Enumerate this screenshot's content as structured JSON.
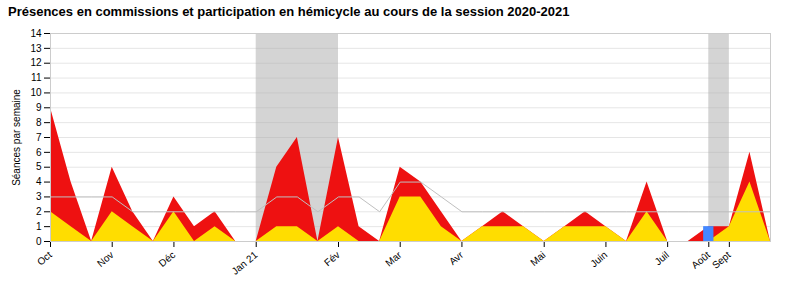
{
  "chart_data": {
    "type": "area",
    "title": "Présences en commissions et participation en hémicycle au cours de la session 2020-2021",
    "ylabel": "Séances par semaine",
    "x": [
      0,
      1,
      2,
      3,
      4,
      5,
      6,
      7,
      8,
      9,
      10,
      11,
      12,
      13,
      14,
      15,
      16,
      17,
      18,
      19,
      20,
      21,
      22,
      23,
      24,
      25,
      26,
      27,
      28,
      29,
      30,
      31,
      32,
      33,
      34,
      35
    ],
    "xlim": [
      0,
      35
    ],
    "xticks": [
      {
        "value": 0,
        "label": "Oct"
      },
      {
        "value": 3,
        "label": "Nov"
      },
      {
        "value": 6,
        "label": "Déc"
      },
      {
        "value": 10,
        "label": "Jan 21"
      },
      {
        "value": 14,
        "label": "Fév"
      },
      {
        "value": 17,
        "label": "Mar"
      },
      {
        "value": 20,
        "label": "Avr"
      },
      {
        "value": 24,
        "label": "Mai"
      },
      {
        "value": 27,
        "label": "Juin"
      },
      {
        "value": 30,
        "label": "Juil"
      },
      {
        "value": 32,
        "label": "Août"
      },
      {
        "value": 33,
        "label": "Sept"
      }
    ],
    "ylim": [
      0,
      14
    ],
    "yticks": [
      0,
      1,
      2,
      3,
      4,
      5,
      6,
      7,
      8,
      9,
      10,
      11,
      12,
      13,
      14
    ],
    "grid": true,
    "series": [
      {
        "type": "area",
        "color": "#ee1111",
        "values": [
          9,
          4,
          0,
          5,
          2,
          0,
          3,
          1,
          2,
          0,
          0,
          5,
          7,
          0,
          7,
          1,
          0,
          5,
          4,
          2,
          0,
          1,
          2,
          1,
          0,
          1,
          2,
          1,
          0,
          4,
          0,
          0,
          1,
          1,
          6,
          0
        ]
      },
      {
        "type": "area",
        "color": "#ffdd00",
        "values": [
          2,
          1,
          0,
          2,
          1,
          0,
          2,
          0,
          1,
          0,
          0,
          1,
          1,
          0,
          1,
          0,
          0,
          3,
          3,
          1,
          0,
          1,
          1,
          1,
          0,
          1,
          1,
          1,
          0,
          2,
          0,
          0,
          0,
          1,
          4,
          0
        ]
      },
      {
        "type": "bar",
        "color": "#4488ff",
        "values": [
          null,
          null,
          null,
          null,
          null,
          null,
          null,
          null,
          null,
          null,
          null,
          null,
          null,
          null,
          null,
          null,
          null,
          null,
          null,
          null,
          null,
          null,
          null,
          null,
          null,
          null,
          null,
          null,
          null,
          null,
          null,
          null,
          1,
          null,
          null,
          null
        ]
      },
      {
        "type": "line",
        "color": "#c0c0c0",
        "values": [
          3,
          3,
          3,
          3,
          2,
          2,
          2,
          2,
          2,
          2,
          2,
          3,
          3,
          2,
          3,
          3,
          2,
          4,
          4,
          3,
          2,
          2,
          2,
          2,
          2,
          2,
          2,
          2,
          2,
          2,
          2,
          2,
          2,
          2,
          2,
          2
        ]
      }
    ],
    "shaded": {
      "ranges": [
        [
          10,
          14
        ],
        [
          32,
          33
        ]
      ],
      "color": "#aaaaaa"
    },
    "reference_line": {
      "y": 14,
      "color": "#888888",
      "line_style": "dotted"
    }
  }
}
